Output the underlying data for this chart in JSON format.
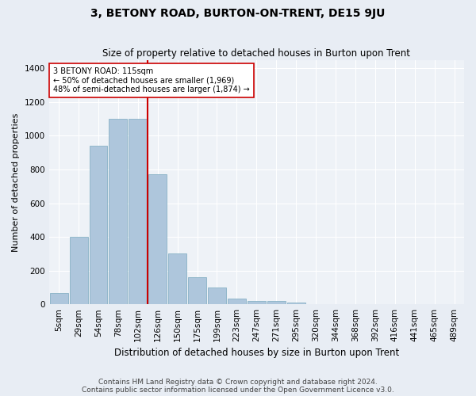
{
  "title": "3, BETONY ROAD, BURTON-ON-TRENT, DE15 9JU",
  "subtitle": "Size of property relative to detached houses in Burton upon Trent",
  "xlabel": "Distribution of detached houses by size in Burton upon Trent",
  "ylabel": "Number of detached properties",
  "footer1": "Contains HM Land Registry data © Crown copyright and database right 2024.",
  "footer2": "Contains public sector information licensed under the Open Government Licence v3.0.",
  "bar_labels": [
    "5sqm",
    "29sqm",
    "54sqm",
    "78sqm",
    "102sqm",
    "126sqm",
    "150sqm",
    "175sqm",
    "199sqm",
    "223sqm",
    "247sqm",
    "271sqm",
    "295sqm",
    "320sqm",
    "344sqm",
    "368sqm",
    "392sqm",
    "416sqm",
    "441sqm",
    "465sqm",
    "489sqm"
  ],
  "bar_values": [
    65,
    400,
    940,
    1100,
    1100,
    770,
    300,
    160,
    100,
    35,
    18,
    18,
    10,
    0,
    0,
    0,
    0,
    0,
    0,
    0,
    0
  ],
  "bar_color": "#aec6dc",
  "bar_edge_color": "#7aaabf",
  "vline_x": 4.5,
  "vline_color": "#cc0000",
  "ylim": [
    0,
    1450
  ],
  "yticks": [
    0,
    200,
    400,
    600,
    800,
    1000,
    1200,
    1400
  ],
  "bg_color": "#e8edf4",
  "plot_bg_color": "#eef2f7",
  "title_fontsize": 10,
  "subtitle_fontsize": 8.5,
  "xlabel_fontsize": 8.5,
  "ylabel_fontsize": 8,
  "tick_fontsize": 7.5,
  "footer_fontsize": 6.5
}
